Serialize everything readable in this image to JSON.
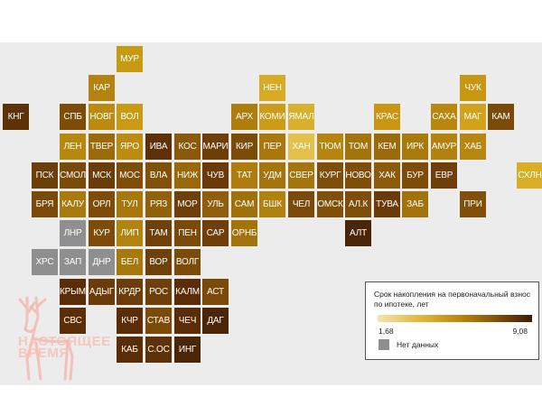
{
  "legend": {
    "title": "Срок накопления на первоначальный взнос по ипотеке, лет",
    "min_label": "1,68",
    "max_label": "9,08",
    "scale": {
      "min": 1.68,
      "max": 9.08
    },
    "nodata_label": "Нет данных",
    "nodata_color": "#8f8f8f",
    "gradient_colors": [
      "#f5e7a8",
      "#e0b335",
      "#b98308",
      "#7d4a06",
      "#3f1b05"
    ]
  },
  "watermark": {
    "text_line1": "НАСТОЯЩЕЕ",
    "text_line2": "ВРЕМЯ",
    "color": "#f4b3a8"
  },
  "regions": [
    {
      "label": "МУР",
      "col": 4,
      "row": 0,
      "color": "#c79a12"
    },
    {
      "label": "КАР",
      "col": 3,
      "row": 1,
      "color": "#b3820f"
    },
    {
      "label": "НЕН",
      "col": 9,
      "row": 1,
      "color": "#d8ab25"
    },
    {
      "label": "ЧУК",
      "col": 16,
      "row": 1,
      "color": "#c99612"
    },
    {
      "label": "КНГ",
      "col": 0,
      "row": 2,
      "color": "#5d3208"
    },
    {
      "label": "СПБ",
      "col": 2,
      "row": 2,
      "color": "#7d4d08"
    },
    {
      "label": "НОВГ",
      "col": 3,
      "row": 2,
      "color": "#bb8b10"
    },
    {
      "label": "ВОЛ",
      "col": 4,
      "row": 2,
      "color": "#c99a14"
    },
    {
      "label": "АРХ",
      "col": 8,
      "row": 2,
      "color": "#ae7d0d"
    },
    {
      "label": "КОМИ",
      "col": 9,
      "row": 2,
      "color": "#cc9c18"
    },
    {
      "label": "ЯМАЛ",
      "col": 10,
      "row": 2,
      "color": "#d9b02d"
    },
    {
      "label": "КРАС",
      "col": 13,
      "row": 2,
      "color": "#c89612"
    },
    {
      "label": "САХА",
      "col": 15,
      "row": 2,
      "color": "#b9870e"
    },
    {
      "label": "МАГ",
      "col": 16,
      "row": 2,
      "color": "#d2a21c"
    },
    {
      "label": "КАМ",
      "col": 17,
      "row": 2,
      "color": "#7a4a08"
    },
    {
      "label": "ЛЕН",
      "col": 2,
      "row": 3,
      "color": "#b7880e"
    },
    {
      "label": "ТВЕР",
      "col": 3,
      "row": 3,
      "color": "#9a6a0b"
    },
    {
      "label": "ЯРО",
      "col": 4,
      "row": 3,
      "color": "#bc8b10"
    },
    {
      "label": "ИВА",
      "col": 5,
      "row": 3,
      "color": "#5e3008"
    },
    {
      "label": "КОС",
      "col": 6,
      "row": 3,
      "color": "#8a5a0a"
    },
    {
      "label": "МАРИ",
      "col": 7,
      "row": 3,
      "color": "#6d3e08"
    },
    {
      "label": "КИР",
      "col": 8,
      "row": 3,
      "color": "#7b4b08"
    },
    {
      "label": "ПЕР",
      "col": 9,
      "row": 3,
      "color": "#a9780c"
    },
    {
      "label": "ХАН",
      "col": 10,
      "row": 3,
      "color": "#e2c04a"
    },
    {
      "label": "ТЮМ",
      "col": 11,
      "row": 3,
      "color": "#b5850f"
    },
    {
      "label": "ТОМ",
      "col": 12,
      "row": 3,
      "color": "#a4740c"
    },
    {
      "label": "КЕМ",
      "col": 13,
      "row": 3,
      "color": "#9a6a0b"
    },
    {
      "label": "ИРК",
      "col": 14,
      "row": 3,
      "color": "#a87a0c"
    },
    {
      "label": "АМУР",
      "col": 15,
      "row": 3,
      "color": "#b2820e"
    },
    {
      "label": "ХАБ",
      "col": 16,
      "row": 3,
      "color": "#b6860e"
    },
    {
      "label": "ПСК",
      "col": 1,
      "row": 4,
      "color": "#6c3e08"
    },
    {
      "label": "СМОЛ",
      "col": 2,
      "row": 4,
      "color": "#7a4a08"
    },
    {
      "label": "МСК",
      "col": 3,
      "row": 4,
      "color": "#6a3c08"
    },
    {
      "label": "МОС",
      "col": 4,
      "row": 4,
      "color": "#7e4e08"
    },
    {
      "label": "ВЛА",
      "col": 5,
      "row": 4,
      "color": "#81510a"
    },
    {
      "label": "НИЖ",
      "col": 6,
      "row": 4,
      "color": "#98680b"
    },
    {
      "label": "ЧУВ",
      "col": 7,
      "row": 4,
      "color": "#6a3b08"
    },
    {
      "label": "ТАТ",
      "col": 8,
      "row": 4,
      "color": "#ad7c0d"
    },
    {
      "label": "УДМ",
      "col": 9,
      "row": 4,
      "color": "#a5750c"
    },
    {
      "label": "СВЕР",
      "col": 10,
      "row": 4,
      "color": "#a4750c"
    },
    {
      "label": "КУРГ",
      "col": 11,
      "row": 4,
      "color": "#7e4d08"
    },
    {
      "label": "НОВО",
      "col": 12,
      "row": 4,
      "color": "#7e4d08"
    },
    {
      "label": "ХАК",
      "col": 13,
      "row": 4,
      "color": "#8b5a0a"
    },
    {
      "label": "БУР",
      "col": 14,
      "row": 4,
      "color": "#7d4c08"
    },
    {
      "label": "ЕВР",
      "col": 15,
      "row": 4,
      "color": "#6e3f08"
    },
    {
      "label": "СХЛН",
      "col": 18,
      "row": 4,
      "color": "#d9ad26"
    },
    {
      "label": "БРЯ",
      "col": 1,
      "row": 5,
      "color": "#7a4a08"
    },
    {
      "label": "КАЛУ",
      "col": 2,
      "row": 5,
      "color": "#a67a0c"
    },
    {
      "label": "ОРЛ",
      "col": 3,
      "row": 5,
      "color": "#7d4c08"
    },
    {
      "label": "ТУЛ",
      "col": 4,
      "row": 5,
      "color": "#a7780c"
    },
    {
      "label": "РЯЗ",
      "col": 5,
      "row": 5,
      "color": "#91610a"
    },
    {
      "label": "МОР",
      "col": 6,
      "row": 5,
      "color": "#6e3f08"
    },
    {
      "label": "УЛЬ",
      "col": 7,
      "row": 5,
      "color": "#8e5e0a"
    },
    {
      "label": "САМ",
      "col": 8,
      "row": 5,
      "color": "#a0700b"
    },
    {
      "label": "БШК",
      "col": 9,
      "row": 5,
      "color": "#b18110"
    },
    {
      "label": "ЧЕЛ",
      "col": 10,
      "row": 5,
      "color": "#7b4a08"
    },
    {
      "label": "ОМСК",
      "col": 11,
      "row": 5,
      "color": "#805008"
    },
    {
      "label": "АЛ.К",
      "col": 12,
      "row": 5,
      "color": "#7e4d08"
    },
    {
      "label": "ТУВА",
      "col": 13,
      "row": 5,
      "color": "#6a3b08"
    },
    {
      "label": "ЗАБ",
      "col": 14,
      "row": 5,
      "color": "#a2720b"
    },
    {
      "label": "ПРИ",
      "col": 16,
      "row": 5,
      "color": "#815008"
    },
    {
      "label": "ЛНР",
      "col": 2,
      "row": 6,
      "color": "#8f8f8f"
    },
    {
      "label": "КУР",
      "col": 3,
      "row": 6,
      "color": "#7d4c08"
    },
    {
      "label": "ЛИП",
      "col": 4,
      "row": 6,
      "color": "#b2830e"
    },
    {
      "label": "ТАМ",
      "col": 5,
      "row": 6,
      "color": "#6f4008"
    },
    {
      "label": "ПЕН",
      "col": 6,
      "row": 6,
      "color": "#7a4a08"
    },
    {
      "label": "САР",
      "col": 7,
      "row": 6,
      "color": "#6e3f08"
    },
    {
      "label": "ОРНБ",
      "col": 8,
      "row": 6,
      "color": "#a2720b"
    },
    {
      "label": "АЛТ",
      "col": 12,
      "row": 6,
      "color": "#4a2506"
    },
    {
      "label": "ХРС",
      "col": 1,
      "row": 7,
      "color": "#8f8f8f"
    },
    {
      "label": "ЗАП",
      "col": 2,
      "row": 7,
      "color": "#8f8f8f"
    },
    {
      "label": "ДНР",
      "col": 3,
      "row": 7,
      "color": "#8f8f8f"
    },
    {
      "label": "БЕЛ",
      "col": 4,
      "row": 7,
      "color": "#a7780c"
    },
    {
      "label": "ВОР",
      "col": 5,
      "row": 7,
      "color": "#6f4008"
    },
    {
      "label": "ВОЛГ",
      "col": 6,
      "row": 7,
      "color": "#7b4b08"
    },
    {
      "label": "КРЫМ",
      "col": 2,
      "row": 8,
      "color": "#5a2d07"
    },
    {
      "label": "АДЫГ",
      "col": 3,
      "row": 8,
      "color": "#6b3c08"
    },
    {
      "label": "КРДР",
      "col": 4,
      "row": 8,
      "color": "#6c3d08"
    },
    {
      "label": "РОС",
      "col": 5,
      "row": 8,
      "color": "#6e3f08"
    },
    {
      "label": "КАЛМ",
      "col": 6,
      "row": 8,
      "color": "#5a2d07"
    },
    {
      "label": "АСТ",
      "col": 7,
      "row": 8,
      "color": "#7a4a08"
    },
    {
      "label": "СВС",
      "col": 2,
      "row": 9,
      "color": "#5b2e07"
    },
    {
      "label": "КЧР",
      "col": 4,
      "row": 9,
      "color": "#5a2d07"
    },
    {
      "label": "СТАВ",
      "col": 5,
      "row": 9,
      "color": "#7a4a08"
    },
    {
      "label": "ЧЕЧ",
      "col": 6,
      "row": 9,
      "color": "#5a2d07"
    },
    {
      "label": "ДАГ",
      "col": 7,
      "row": 9,
      "color": "#4a2506"
    },
    {
      "label": "КАБ",
      "col": 4,
      "row": 10,
      "color": "#5a2d07"
    },
    {
      "label": "С.ОС",
      "col": 5,
      "row": 10,
      "color": "#5f3108"
    },
    {
      "label": "ИНГ",
      "col": 6,
      "row": 10,
      "color": "#4a2506"
    }
  ]
}
